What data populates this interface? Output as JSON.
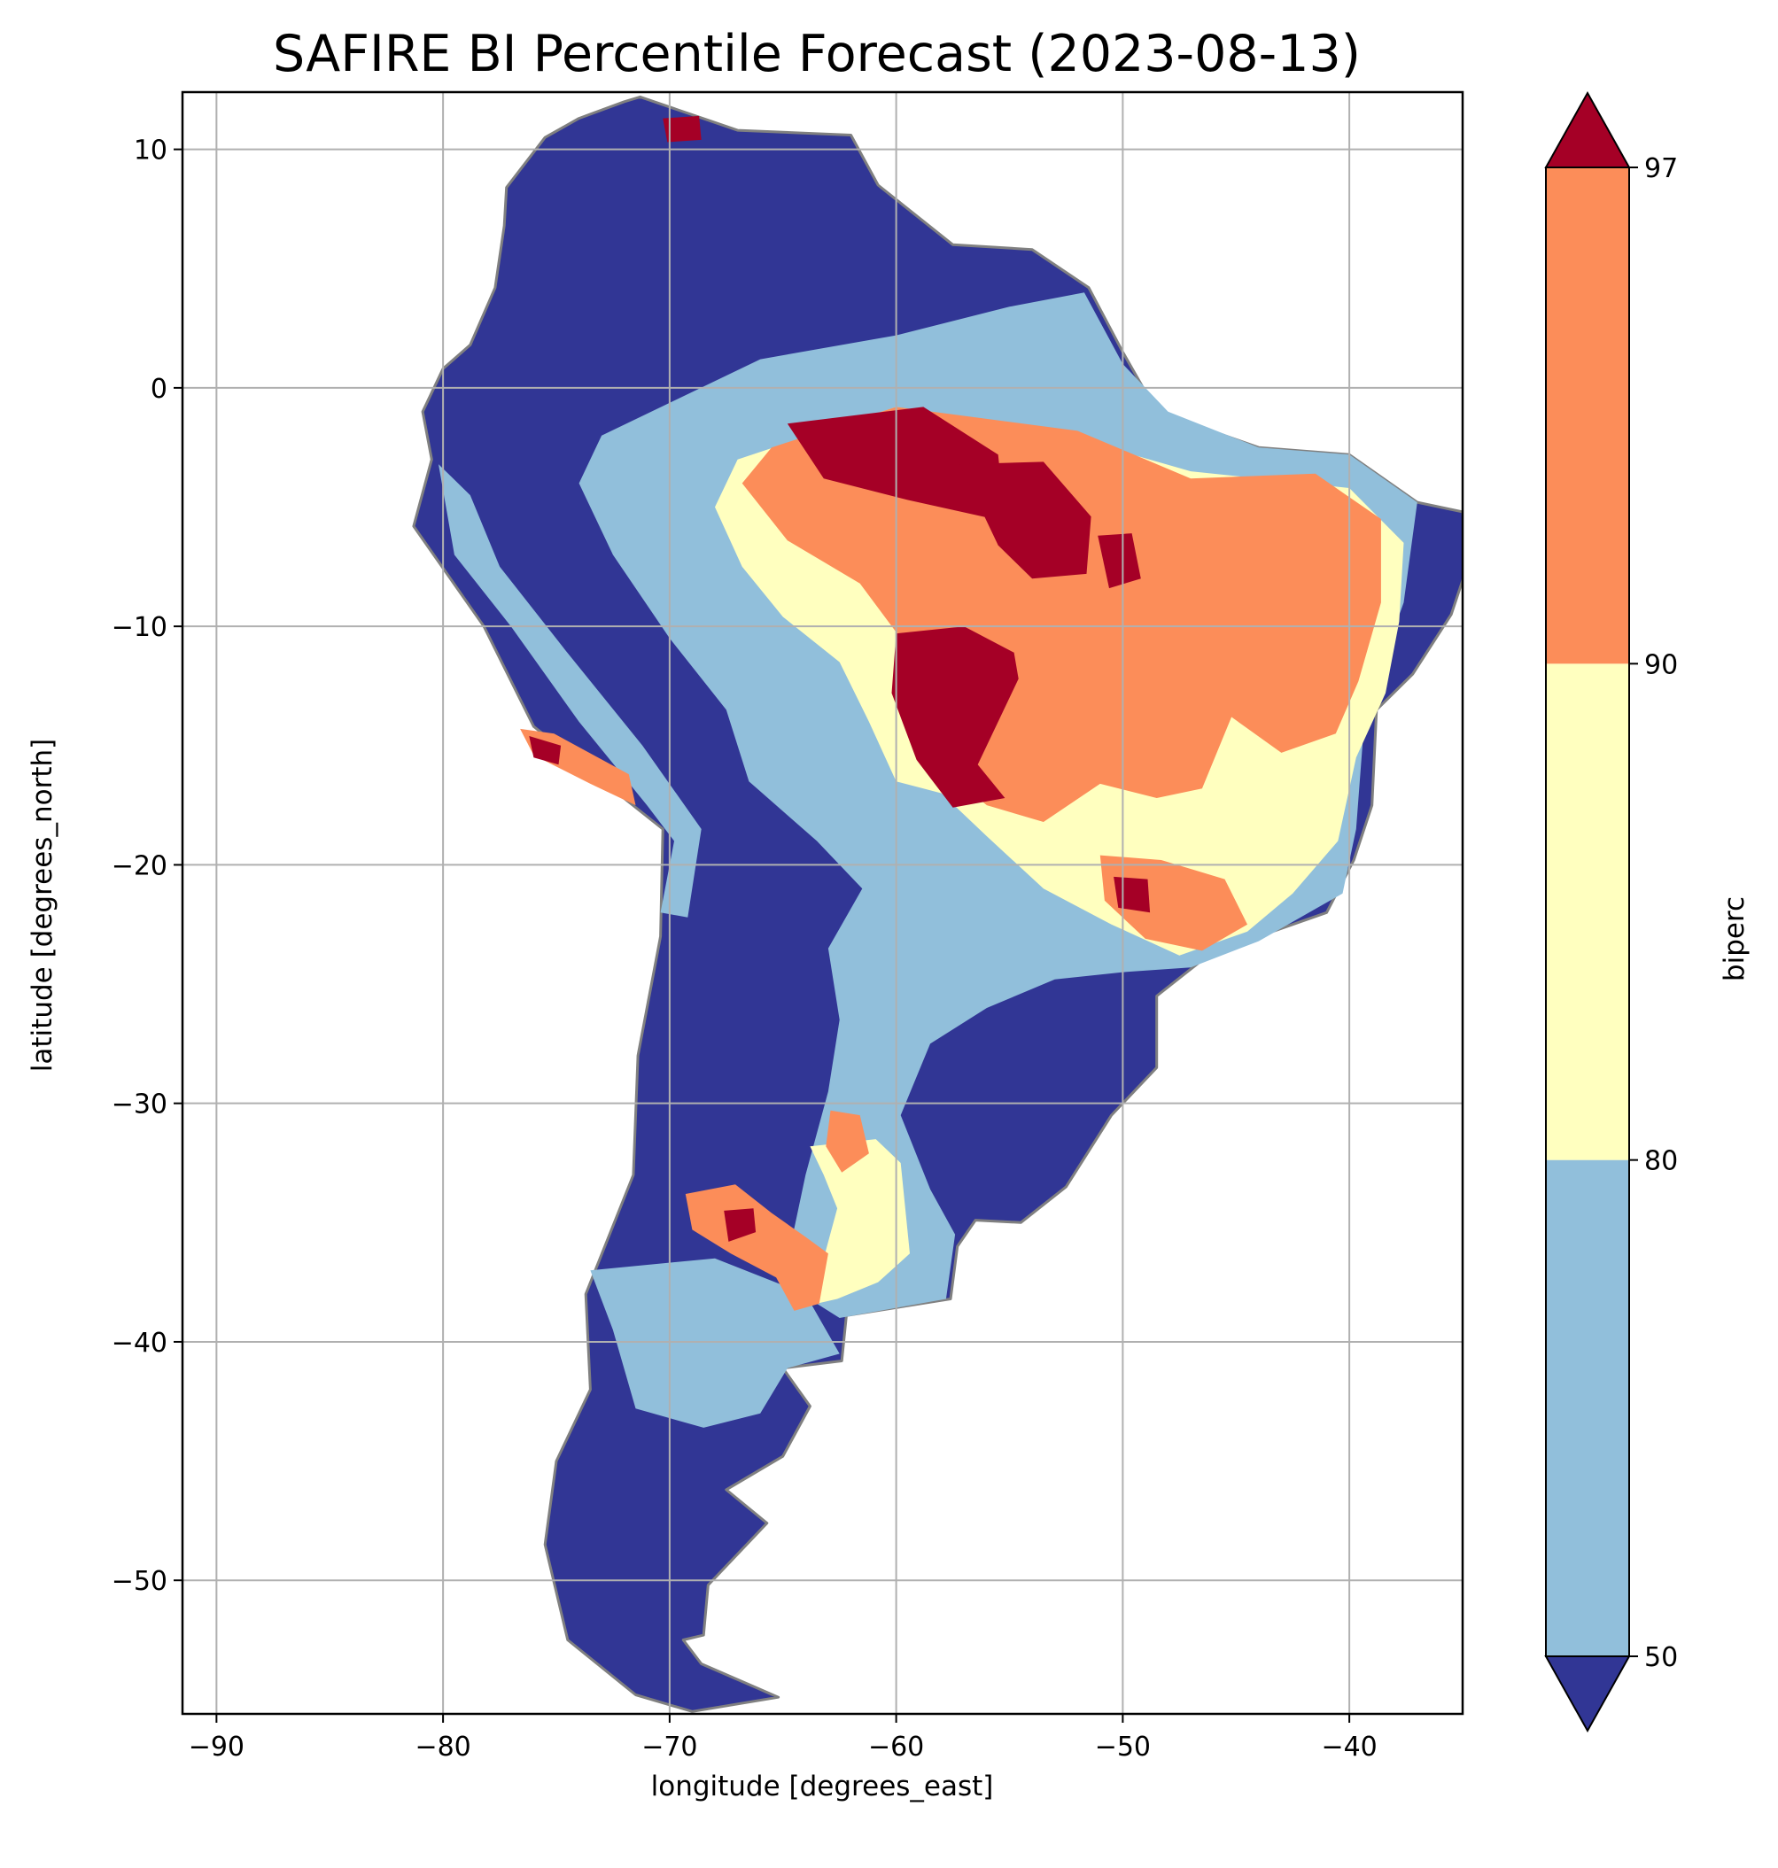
{
  "title": "SAFIRE BI Percentile Forecast (2023-08-13)",
  "x_axis": {
    "label": "longitude [degrees_east]",
    "range": [
      -91.5,
      -35
    ],
    "ticks": [
      {
        "value": -90,
        "label": "−90"
      },
      {
        "value": -80,
        "label": "−80"
      },
      {
        "value": -70,
        "label": "−70"
      },
      {
        "value": -60,
        "label": "−60"
      },
      {
        "value": -50,
        "label": "−50"
      },
      {
        "value": -40,
        "label": "−40"
      }
    ]
  },
  "y_axis": {
    "label": "latitude [degrees_north]",
    "range": [
      -55.6,
      12.4
    ],
    "ticks": [
      {
        "value": 10,
        "label": "10"
      },
      {
        "value": 0,
        "label": "0"
      },
      {
        "value": -10,
        "label": "−10"
      },
      {
        "value": -20,
        "label": "−20"
      },
      {
        "value": -30,
        "label": "−30"
      },
      {
        "value": -40,
        "label": "−40"
      },
      {
        "value": -50,
        "label": "−50"
      }
    ]
  },
  "grid": true,
  "colorbar": {
    "label": "biperc",
    "ticks": [
      "50",
      "80",
      "90",
      "97"
    ],
    "extend": "both",
    "bins": [
      {
        "from": null,
        "to": 50,
        "color": "#313695"
      },
      {
        "from": 50,
        "to": 80,
        "color": "#91bfdb"
      },
      {
        "from": 80,
        "to": 90,
        "color": "#ffffbf"
      },
      {
        "from": 90,
        "to": 97,
        "color": "#fc8d59"
      },
      {
        "from": 97,
        "to": null,
        "color": "#a50026"
      }
    ]
  },
  "colors": {
    "below_50": "#313695",
    "p50_80": "#91bfdb",
    "p80_90": "#ffffbf",
    "p90_97": "#fc8d59",
    "above_97": "#a50026",
    "borders": "#808080",
    "gridlines": "#b0b0b0"
  },
  "map_regions": [
    {
      "name": "continent",
      "category": "<50",
      "lonlat": [
        [
          -71.3,
          12.2
        ],
        [
          -67,
          10.8
        ],
        [
          -62,
          10.6
        ],
        [
          -60.8,
          8.5
        ],
        [
          -57.5,
          6
        ],
        [
          -54,
          5.8
        ],
        [
          -51.5,
          4.2
        ],
        [
          -50,
          1.5
        ],
        [
          -48.5,
          -1
        ],
        [
          -44,
          -2.5
        ],
        [
          -40,
          -2.8
        ],
        [
          -37,
          -4.8
        ],
        [
          -35,
          -5.2
        ],
        [
          -34.8,
          -7.5
        ],
        [
          -35.5,
          -9.5
        ],
        [
          -37.2,
          -12
        ],
        [
          -38.8,
          -13.5
        ],
        [
          -39,
          -17.5
        ],
        [
          -39.8,
          -19.8
        ],
        [
          -41,
          -22
        ],
        [
          -44,
          -23
        ],
        [
          -46.5,
          -24
        ],
        [
          -48.5,
          -25.5
        ],
        [
          -48.5,
          -28.5
        ],
        [
          -50.5,
          -30.5
        ],
        [
          -52.5,
          -33.5
        ],
        [
          -54.5,
          -35
        ],
        [
          -56.5,
          -34.9
        ],
        [
          -57.3,
          -36
        ],
        [
          -57.6,
          -38.2
        ],
        [
          -62.2,
          -38.9
        ],
        [
          -62.4,
          -40.8
        ],
        [
          -65,
          -41.1
        ],
        [
          -63.8,
          -42.7
        ],
        [
          -65,
          -44.8
        ],
        [
          -67.5,
          -46.2
        ],
        [
          -65.7,
          -47.6
        ],
        [
          -68.3,
          -50.2
        ],
        [
          -68.5,
          -52.3
        ],
        [
          -69.4,
          -52.5
        ],
        [
          -68.6,
          -53.5
        ],
        [
          -65.2,
          -54.9
        ],
        [
          -69,
          -55.5
        ],
        [
          -71.5,
          -54.8
        ],
        [
          -74.5,
          -52.5
        ],
        [
          -75.5,
          -48.5
        ],
        [
          -75,
          -45
        ],
        [
          -73.5,
          -42
        ],
        [
          -73.7,
          -38
        ],
        [
          -71.6,
          -33
        ],
        [
          -71.4,
          -28
        ],
        [
          -70.4,
          -23
        ],
        [
          -70.3,
          -18.5
        ],
        [
          -76,
          -14.2
        ],
        [
          -78.2,
          -10
        ],
        [
          -81.3,
          -5.8
        ],
        [
          -80.5,
          -3
        ],
        [
          -80.9,
          -1
        ],
        [
          -80,
          0.8
        ],
        [
          -78.8,
          1.8
        ],
        [
          -77.7,
          4.2
        ],
        [
          -77.3,
          6.8
        ],
        [
          -77.2,
          8.4
        ],
        [
          -75.5,
          10.5
        ],
        [
          -74,
          11.3
        ],
        [
          -72,
          12
        ]
      ]
    },
    {
      "name": "inland-east",
      "category": "50-80",
      "lonlat": [
        [
          -73,
          -2
        ],
        [
          -66,
          1.2
        ],
        [
          -60,
          2.2
        ],
        [
          -55,
          3.4
        ],
        [
          -51.7,
          4
        ],
        [
          -50,
          1
        ],
        [
          -48,
          -1
        ],
        [
          -44,
          -2.5
        ],
        [
          -40,
          -2.8
        ],
        [
          -37,
          -4.8
        ],
        [
          -37.6,
          -9
        ],
        [
          -39.3,
          -13.5
        ],
        [
          -39.7,
          -18.5
        ],
        [
          -40.3,
          -21.2
        ],
        [
          -44,
          -23.2
        ],
        [
          -47,
          -24.3
        ],
        [
          -50,
          -24.5
        ],
        [
          -53,
          -24.8
        ],
        [
          -56,
          -26
        ],
        [
          -58.5,
          -27.5
        ],
        [
          -59.8,
          -30.5
        ],
        [
          -58.5,
          -33.6
        ],
        [
          -57.4,
          -35.5
        ],
        [
          -57.8,
          -38.2
        ],
        [
          -62.5,
          -39
        ],
        [
          -65,
          -37.5
        ],
        [
          -64,
          -33
        ],
        [
          -63,
          -29.5
        ],
        [
          -62.5,
          -26.5
        ],
        [
          -63,
          -23.5
        ],
        [
          -61.5,
          -21
        ],
        [
          -63.5,
          -19
        ],
        [
          -66.5,
          -16.5
        ],
        [
          -67.5,
          -13.5
        ],
        [
          -70,
          -10.5
        ],
        [
          -72.5,
          -7
        ],
        [
          -74,
          -4
        ]
      ]
    },
    {
      "name": "patagonia",
      "category": "50-80",
      "lonlat": [
        [
          -73.5,
          -37
        ],
        [
          -68,
          -36.5
        ],
        [
          -64,
          -38
        ],
        [
          -62.5,
          -40.5
        ],
        [
          -64.8,
          -41.1
        ],
        [
          -66,
          -43
        ],
        [
          -68.5,
          -43.6
        ],
        [
          -71.5,
          -42.8
        ],
        [
          -72.5,
          -39.5
        ]
      ]
    },
    {
      "name": "andes-belt",
      "category": "50-80",
      "lonlat": [
        [
          -79.5,
          -7
        ],
        [
          -77,
          -10
        ],
        [
          -74,
          -14
        ],
        [
          -71,
          -17.5
        ],
        [
          -69.8,
          -19
        ],
        [
          -70.4,
          -22
        ],
        [
          -69.2,
          -22.2
        ],
        [
          -68.6,
          -18.5
        ],
        [
          -71.2,
          -15
        ],
        [
          -74.6,
          -11
        ],
        [
          -77.5,
          -7.5
        ],
        [
          -78.8,
          -4.5
        ],
        [
          -80.2,
          -3.2
        ]
      ]
    },
    {
      "name": "north-east-yellow",
      "category": "80-90",
      "lonlat": [
        [
          -67,
          -3
        ],
        [
          -60,
          -0.8
        ],
        [
          -52.5,
          -2
        ],
        [
          -47,
          -3.5
        ],
        [
          -40,
          -4.2
        ],
        [
          -37.6,
          -6.5
        ],
        [
          -37.8,
          -9.8
        ],
        [
          -38.4,
          -12.8
        ],
        [
          -39.7,
          -15.5
        ],
        [
          -40.5,
          -19
        ],
        [
          -42.5,
          -21.2
        ],
        [
          -44.5,
          -22.8
        ],
        [
          -47.5,
          -23.8
        ],
        [
          -50.5,
          -22.5
        ],
        [
          -53.5,
          -21
        ],
        [
          -56,
          -18.8
        ],
        [
          -58,
          -17
        ],
        [
          -60,
          -16.5
        ],
        [
          -61.2,
          -14
        ],
        [
          -62.5,
          -11.5
        ],
        [
          -65,
          -9.6
        ],
        [
          -66.8,
          -7.5
        ],
        [
          -68,
          -5
        ]
      ]
    },
    {
      "name": "north-east-orange",
      "category": "90-97",
      "lonlat": [
        [
          -65.5,
          -2.5
        ],
        [
          -60,
          -0.8
        ],
        [
          -52,
          -1.8
        ],
        [
          -47,
          -3.8
        ],
        [
          -41.5,
          -3.6
        ],
        [
          -38.6,
          -5.5
        ],
        [
          -38.6,
          -9
        ],
        [
          -39.6,
          -12.3
        ],
        [
          -40.6,
          -14.5
        ],
        [
          -43,
          -15.3
        ],
        [
          -45.2,
          -13.8
        ],
        [
          -46.5,
          -16.8
        ],
        [
          -48.5,
          -17.2
        ],
        [
          -51,
          -16.6
        ],
        [
          -53.5,
          -18.2
        ],
        [
          -56,
          -17.5
        ],
        [
          -58.5,
          -15.5
        ],
        [
          -59.2,
          -13
        ],
        [
          -59.8,
          -10.5
        ],
        [
          -61.6,
          -8.2
        ],
        [
          -64.8,
          -6.4
        ],
        [
          -66.8,
          -4
        ]
      ]
    },
    {
      "name": "north-east-red-1",
      "category": ">=97",
      "lonlat": [
        [
          -64.8,
          -1.5
        ],
        [
          -58.8,
          -0.8
        ],
        [
          -55.5,
          -2.8
        ],
        [
          -55.2,
          -5.6
        ],
        [
          -59.5,
          -4.7
        ],
        [
          -63.2,
          -3.8
        ]
      ]
    },
    {
      "name": "north-east-red-2",
      "category": ">=97",
      "lonlat": [
        [
          -57.2,
          -3.2
        ],
        [
          -53.5,
          -3.1
        ],
        [
          -51.4,
          -5.4
        ],
        [
          -51.6,
          -7.8
        ],
        [
          -54,
          -8
        ],
        [
          -55.5,
          -6.6
        ]
      ]
    },
    {
      "name": "north-east-red-3",
      "category": ">=97",
      "lonlat": [
        [
          -60,
          -10.3
        ],
        [
          -57,
          -10
        ],
        [
          -54.8,
          -11.1
        ],
        [
          -54.6,
          -12.2
        ],
        [
          -56.4,
          -15.8
        ],
        [
          -55.2,
          -17.2
        ],
        [
          -57.5,
          -17.6
        ],
        [
          -59.1,
          -15.6
        ],
        [
          -60.2,
          -12.8
        ]
      ]
    },
    {
      "name": "north-east-red-4",
      "category": ">=97",
      "lonlat": [
        [
          -51.1,
          -6.2
        ],
        [
          -49.6,
          -6.1
        ],
        [
          -49.2,
          -8
        ],
        [
          -50.6,
          -8.4
        ]
      ]
    },
    {
      "name": "south-east-orange",
      "category": "90-97",
      "lonlat": [
        [
          -51,
          -19.6
        ],
        [
          -48.3,
          -19.8
        ],
        [
          -45.5,
          -20.6
        ],
        [
          -44.5,
          -22.5
        ],
        [
          -46.5,
          -23.6
        ],
        [
          -49,
          -23.1
        ],
        [
          -50.8,
          -21.5
        ]
      ]
    },
    {
      "name": "south-east-red",
      "category": ">=97",
      "lonlat": [
        [
          -50.4,
          -20.5
        ],
        [
          -48.9,
          -20.6
        ],
        [
          -48.8,
          -22
        ],
        [
          -50.2,
          -21.8
        ]
      ]
    },
    {
      "name": "pampas-yellow",
      "category": "80-90",
      "lonlat": [
        [
          -63.8,
          -31.8
        ],
        [
          -60.9,
          -31.5
        ],
        [
          -59.8,
          -32.5
        ],
        [
          -59.4,
          -36.3
        ],
        [
          -60.8,
          -37.5
        ],
        [
          -62.6,
          -38.2
        ],
        [
          -64,
          -38.5
        ],
        [
          -63.2,
          -36.5
        ],
        [
          -62.6,
          -34.4
        ],
        [
          -63.2,
          -33
        ]
      ]
    },
    {
      "name": "pampas-orange-1",
      "category": "90-97",
      "lonlat": [
        [
          -69.3,
          -33.8
        ],
        [
          -67.1,
          -33.4
        ],
        [
          -65.5,
          -34.6
        ],
        [
          -64,
          -35.6
        ],
        [
          -63,
          -36.3
        ],
        [
          -63.4,
          -38.4
        ],
        [
          -64.5,
          -38.7
        ],
        [
          -65.3,
          -37.3
        ],
        [
          -67.3,
          -36.3
        ],
        [
          -69,
          -35.3
        ]
      ]
    },
    {
      "name": "pampas-orange-2",
      "category": "90-97",
      "lonlat": [
        [
          -62.9,
          -30.3
        ],
        [
          -61.6,
          -30.5
        ],
        [
          -61.2,
          -32.1
        ],
        [
          -62.4,
          -32.9
        ],
        [
          -63.1,
          -31.8
        ]
      ]
    },
    {
      "name": "pampas-red",
      "category": ">=97",
      "lonlat": [
        [
          -67.6,
          -34.5
        ],
        [
          -66.3,
          -34.4
        ],
        [
          -66.2,
          -35.4
        ],
        [
          -67.4,
          -35.8
        ]
      ]
    },
    {
      "name": "andes-coast-orange",
      "category": "90-97",
      "lonlat": [
        [
          -76.6,
          -14.3
        ],
        [
          -75.1,
          -14.5
        ],
        [
          -71.8,
          -16.2
        ],
        [
          -71.5,
          -17.5
        ],
        [
          -73.5,
          -16.6
        ],
        [
          -76,
          -15.4
        ]
      ]
    },
    {
      "name": "andes-coast-red",
      "category": ">=97",
      "lonlat": [
        [
          -76.2,
          -14.6
        ],
        [
          -74.8,
          -15
        ],
        [
          -74.9,
          -15.8
        ],
        [
          -76,
          -15.5
        ]
      ]
    },
    {
      "name": "caribbean-red",
      "category": ">=97",
      "lonlat": [
        [
          -70.3,
          11.3
        ],
        [
          -68.7,
          11.4
        ],
        [
          -68.6,
          10.4
        ],
        [
          -70.1,
          10.3
        ]
      ]
    }
  ]
}
